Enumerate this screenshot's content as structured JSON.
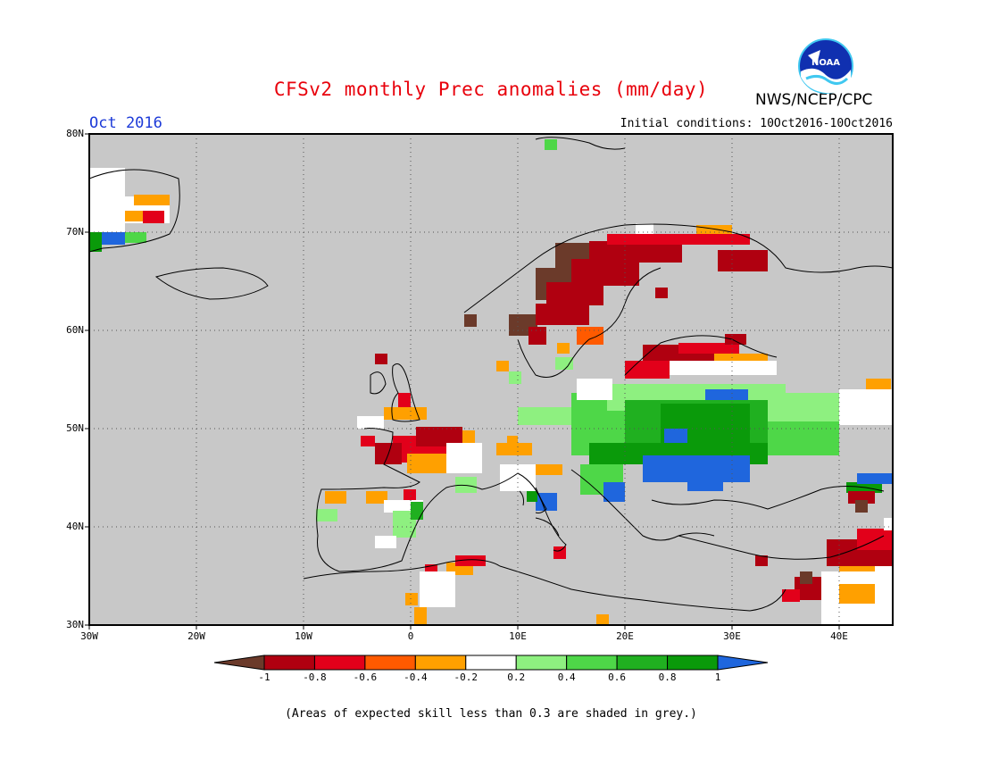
{
  "header": {
    "title": "CFSv2 monthly Prec anomalies (mm/day)",
    "month": "Oct 2016",
    "initial_conditions": "Initial conditions: 10Oct2016-10Oct2016",
    "agency": "NWS/NCEP/CPC",
    "logo_text": "NOAA"
  },
  "map": {
    "lon_range": [
      -30,
      45
    ],
    "lat_range": [
      30,
      80
    ],
    "lat_labels": [
      "80N",
      "70N",
      "60N",
      "50N",
      "40N",
      "30N"
    ],
    "lon_labels": [
      "30W",
      "20W",
      "10W",
      "0",
      "10E",
      "20E",
      "30E",
      "40E"
    ],
    "background_color": "#c8c8c8",
    "grid": "dotted"
  },
  "colorbar": {
    "labels": [
      "-1",
      "-0.8",
      "-0.6",
      "-0.4",
      "-0.2",
      "0.2",
      "0.4",
      "0.6",
      "0.8",
      "1"
    ],
    "colors": [
      "#6b3a2a",
      "#b00010",
      "#e2001a",
      "#ff5a00",
      "#ffa000",
      "#ffffff",
      "#8ef080",
      "#4ed748",
      "#20b020",
      "#0a9a0a",
      "#1f66dd"
    ]
  },
  "footnote": "(Areas of expected skill less than 0.3 are shaded in grey.)"
}
